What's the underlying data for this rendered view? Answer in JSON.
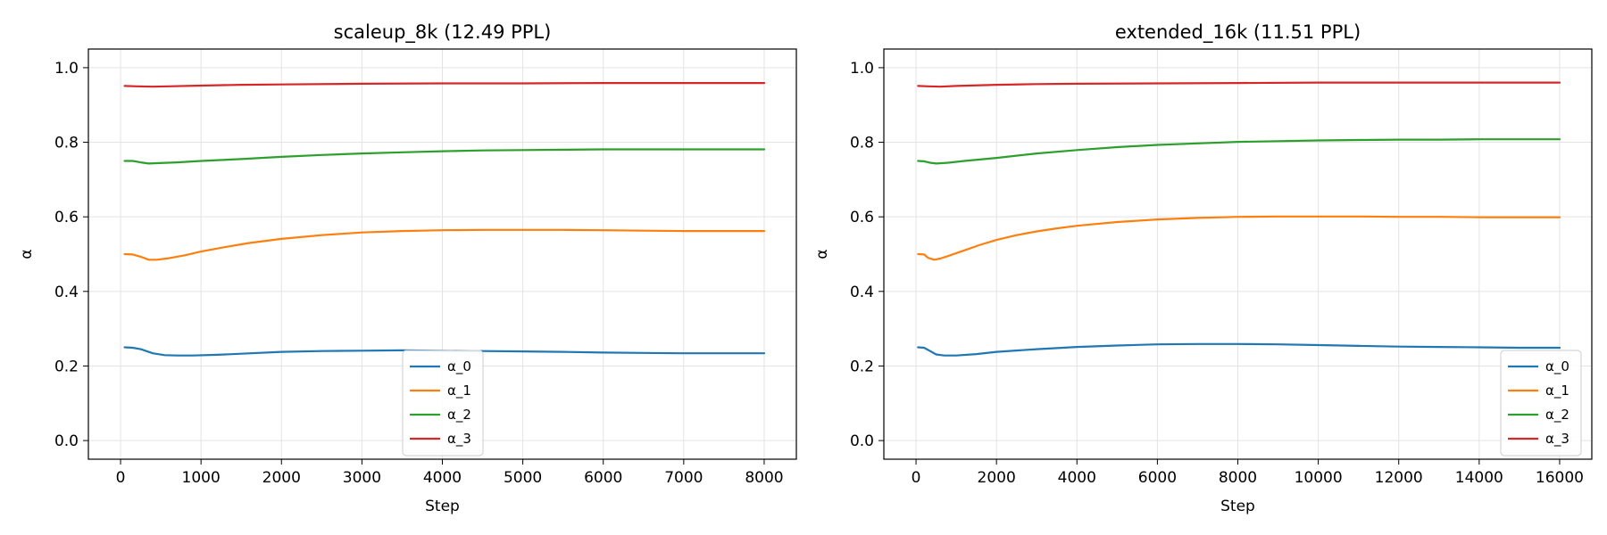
{
  "chart_data": [
    {
      "type": "line",
      "title": "scaleup_8k (12.49 PPL)",
      "xlabel": "Step",
      "ylabel": "α",
      "xlim": [
        -400,
        8400
      ],
      "ylim": [
        -0.05,
        1.05
      ],
      "xticks": [
        0,
        1000,
        2000,
        3000,
        4000,
        5000,
        6000,
        7000,
        8000
      ],
      "yticks": [
        0.0,
        0.2,
        0.4,
        0.6,
        0.8,
        1.0
      ],
      "grid": true,
      "legend": "bottom-center",
      "series": [
        {
          "name": "α_0",
          "color": "#1f77b4",
          "points": [
            [
              50,
              0.25
            ],
            [
              150,
              0.249
            ],
            [
              250,
              0.245
            ],
            [
              400,
              0.234
            ],
            [
              550,
              0.229
            ],
            [
              700,
              0.228
            ],
            [
              900,
              0.228
            ],
            [
              1200,
              0.23
            ],
            [
              1500,
              0.233
            ],
            [
              2000,
              0.238
            ],
            [
              2500,
              0.24
            ],
            [
              3000,
              0.241
            ],
            [
              3500,
              0.242
            ],
            [
              4000,
              0.241
            ],
            [
              4500,
              0.24
            ],
            [
              5000,
              0.239
            ],
            [
              5500,
              0.238
            ],
            [
              6000,
              0.236
            ],
            [
              6500,
              0.235
            ],
            [
              7000,
              0.234
            ],
            [
              7500,
              0.234
            ],
            [
              8000,
              0.234
            ]
          ]
        },
        {
          "name": "α_1",
          "color": "#ff7f0e",
          "points": [
            [
              50,
              0.5
            ],
            [
              150,
              0.499
            ],
            [
              250,
              0.493
            ],
            [
              350,
              0.485
            ],
            [
              450,
              0.485
            ],
            [
              600,
              0.489
            ],
            [
              800,
              0.497
            ],
            [
              1000,
              0.507
            ],
            [
              1300,
              0.519
            ],
            [
              1600,
              0.53
            ],
            [
              2000,
              0.541
            ],
            [
              2500,
              0.551
            ],
            [
              3000,
              0.558
            ],
            [
              3500,
              0.562
            ],
            [
              4000,
              0.564
            ],
            [
              4500,
              0.565
            ],
            [
              5000,
              0.565
            ],
            [
              5500,
              0.565
            ],
            [
              6000,
              0.564
            ],
            [
              6500,
              0.563
            ],
            [
              7000,
              0.562
            ],
            [
              7500,
              0.562
            ],
            [
              8000,
              0.562
            ]
          ]
        },
        {
          "name": "α_2",
          "color": "#2ca02c",
          "points": [
            [
              50,
              0.75
            ],
            [
              150,
              0.75
            ],
            [
              250,
              0.746
            ],
            [
              350,
              0.743
            ],
            [
              450,
              0.744
            ],
            [
              700,
              0.746
            ],
            [
              1000,
              0.75
            ],
            [
              1500,
              0.755
            ],
            [
              2000,
              0.761
            ],
            [
              2500,
              0.766
            ],
            [
              3000,
              0.77
            ],
            [
              3500,
              0.773
            ],
            [
              4000,
              0.776
            ],
            [
              4500,
              0.778
            ],
            [
              5000,
              0.779
            ],
            [
              5500,
              0.78
            ],
            [
              6000,
              0.781
            ],
            [
              6500,
              0.781
            ],
            [
              7000,
              0.781
            ],
            [
              7500,
              0.781
            ],
            [
              8000,
              0.781
            ]
          ]
        },
        {
          "name": "α_3",
          "color": "#d62728",
          "points": [
            [
              50,
              0.951
            ],
            [
              200,
              0.95
            ],
            [
              400,
              0.949
            ],
            [
              600,
              0.95
            ],
            [
              1000,
              0.952
            ],
            [
              1500,
              0.954
            ],
            [
              2000,
              0.955
            ],
            [
              3000,
              0.957
            ],
            [
              4000,
              0.958
            ],
            [
              5000,
              0.958
            ],
            [
              6000,
              0.959
            ],
            [
              7000,
              0.959
            ],
            [
              8000,
              0.959
            ]
          ]
        }
      ]
    },
    {
      "type": "line",
      "title": "extended_16k (11.51 PPL)",
      "xlabel": "Step",
      "ylabel": "α",
      "xlim": [
        -800,
        16800
      ],
      "ylim": [
        -0.05,
        1.05
      ],
      "xticks": [
        0,
        2000,
        4000,
        6000,
        8000,
        10000,
        12000,
        14000,
        16000
      ],
      "yticks": [
        0.0,
        0.2,
        0.4,
        0.6,
        0.8,
        1.0
      ],
      "grid": true,
      "legend": "bottom-right",
      "series": [
        {
          "name": "α_0",
          "color": "#1f77b4",
          "points": [
            [
              50,
              0.25
            ],
            [
              200,
              0.249
            ],
            [
              350,
              0.24
            ],
            [
              500,
              0.231
            ],
            [
              700,
              0.228
            ],
            [
              1000,
              0.228
            ],
            [
              1500,
              0.232
            ],
            [
              2000,
              0.238
            ],
            [
              3000,
              0.245
            ],
            [
              4000,
              0.251
            ],
            [
              5000,
              0.255
            ],
            [
              6000,
              0.258
            ],
            [
              7000,
              0.259
            ],
            [
              8000,
              0.259
            ],
            [
              9000,
              0.258
            ],
            [
              10000,
              0.256
            ],
            [
              11000,
              0.254
            ],
            [
              12000,
              0.252
            ],
            [
              13000,
              0.251
            ],
            [
              14000,
              0.25
            ],
            [
              15000,
              0.249
            ],
            [
              16000,
              0.249
            ]
          ]
        },
        {
          "name": "α_1",
          "color": "#ff7f0e",
          "points": [
            [
              50,
              0.5
            ],
            [
              200,
              0.499
            ],
            [
              300,
              0.49
            ],
            [
              450,
              0.485
            ],
            [
              600,
              0.488
            ],
            [
              800,
              0.495
            ],
            [
              1200,
              0.51
            ],
            [
              1600,
              0.525
            ],
            [
              2000,
              0.538
            ],
            [
              2500,
              0.551
            ],
            [
              3000,
              0.561
            ],
            [
              3500,
              0.569
            ],
            [
              4000,
              0.576
            ],
            [
              5000,
              0.586
            ],
            [
              6000,
              0.593
            ],
            [
              7000,
              0.597
            ],
            [
              8000,
              0.6
            ],
            [
              9000,
              0.601
            ],
            [
              10000,
              0.601
            ],
            [
              11000,
              0.601
            ],
            [
              12000,
              0.6
            ],
            [
              13000,
              0.6
            ],
            [
              14000,
              0.599
            ],
            [
              15000,
              0.599
            ],
            [
              16000,
              0.599
            ]
          ]
        },
        {
          "name": "α_2",
          "color": "#2ca02c",
          "points": [
            [
              50,
              0.75
            ],
            [
              200,
              0.749
            ],
            [
              350,
              0.745
            ],
            [
              500,
              0.743
            ],
            [
              800,
              0.745
            ],
            [
              1200,
              0.75
            ],
            [
              2000,
              0.758
            ],
            [
              3000,
              0.77
            ],
            [
              4000,
              0.779
            ],
            [
              5000,
              0.787
            ],
            [
              6000,
              0.793
            ],
            [
              7000,
              0.797
            ],
            [
              8000,
              0.801
            ],
            [
              9000,
              0.803
            ],
            [
              10000,
              0.805
            ],
            [
              11000,
              0.806
            ],
            [
              12000,
              0.807
            ],
            [
              13000,
              0.807
            ],
            [
              14000,
              0.808
            ],
            [
              15000,
              0.808
            ],
            [
              16000,
              0.808
            ]
          ]
        },
        {
          "name": "α_3",
          "color": "#d62728",
          "points": [
            [
              50,
              0.951
            ],
            [
              300,
              0.95
            ],
            [
              600,
              0.949
            ],
            [
              1000,
              0.951
            ],
            [
              2000,
              0.954
            ],
            [
              3000,
              0.956
            ],
            [
              4000,
              0.957
            ],
            [
              6000,
              0.958
            ],
            [
              8000,
              0.959
            ],
            [
              10000,
              0.96
            ],
            [
              12000,
              0.96
            ],
            [
              14000,
              0.96
            ],
            [
              16000,
              0.96
            ]
          ]
        }
      ]
    }
  ]
}
